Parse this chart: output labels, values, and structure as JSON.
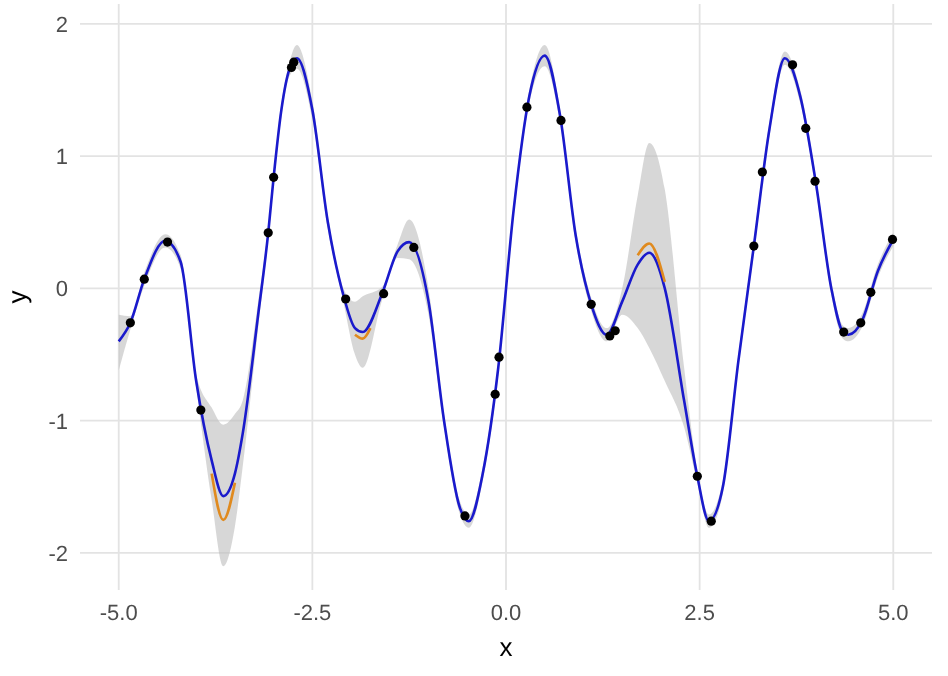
{
  "chart_data": {
    "type": "line",
    "xlabel": "x",
    "ylabel": "y",
    "xlim": [
      -5.5,
      5.5
    ],
    "ylim": [
      -2.28,
      2.15
    ],
    "xticks": [
      {
        "value": -5,
        "label": "-5.0"
      },
      {
        "value": -2.5,
        "label": "-2.5"
      },
      {
        "value": 0,
        "label": "0.0"
      },
      {
        "value": 2.5,
        "label": "2.5"
      },
      {
        "value": 5,
        "label": "5.0"
      }
    ],
    "yticks": [
      -2,
      -1,
      0,
      1,
      2
    ],
    "grid": true,
    "series": [
      {
        "color": "#1a1acc",
        "x": [
          -5,
          -4.85,
          -4.67,
          -4.4,
          -4.2,
          -4,
          -3.8,
          -3.65,
          -3.5,
          -3.4,
          -3.2,
          -3.07,
          -3,
          -2.9,
          -2.8,
          -2.7,
          -2.5,
          -2.3,
          -2.1,
          -1.95,
          -1.85,
          -1.6,
          -1.4,
          -1.25,
          -1,
          -0.8,
          -0.6,
          -0.48,
          -0.3,
          -0.1,
          0.1,
          0.3,
          0.5,
          0.7,
          0.9,
          1.1,
          1.3,
          1.5,
          1.7,
          1.85,
          2.05,
          2.3,
          2.47,
          2.62,
          2.8,
          3,
          3.2,
          3.4,
          3.6,
          3.8,
          4,
          4.2,
          4.35,
          4.42,
          4.6,
          4.8,
          5
        ],
        "values": [
          -0.4,
          -0.26,
          0.07,
          0.36,
          0.2,
          -0.7,
          -1.3,
          -1.57,
          -1.4,
          -1.1,
          -0.2,
          0.42,
          0.84,
          1.35,
          1.65,
          1.74,
          1.35,
          0.5,
          -0.05,
          -0.3,
          -0.33,
          -0.04,
          0.28,
          0.35,
          -0.1,
          -1,
          -1.65,
          -1.76,
          -1.4,
          -0.6,
          0.6,
          1.45,
          1.76,
          1.3,
          0.4,
          -0.12,
          -0.35,
          -0.1,
          0.18,
          0.27,
          0,
          -0.85,
          -1.42,
          -1.76,
          -1.5,
          -0.55,
          0.32,
          1.2,
          1.74,
          1.45,
          0.8,
          0,
          -0.33,
          -0.35,
          -0.24,
          0.13,
          0.37
        ],
        "lower": [
          -0.62,
          -0.31,
          0.02,
          0.31,
          0.15,
          -0.75,
          -1.6,
          -2.1,
          -1.8,
          -1.35,
          -0.3,
          0.37,
          0.79,
          1.3,
          1.6,
          1.66,
          1.28,
          0.45,
          -0.1,
          -0.5,
          -0.6,
          -0.09,
          0.23,
          0.22,
          -0.2,
          -1.05,
          -1.7,
          -1.81,
          -1.45,
          -0.65,
          0.55,
          1.4,
          1.68,
          1.25,
          0.35,
          -0.17,
          -0.4,
          -0.2,
          -0.3,
          -0.45,
          -0.7,
          -1.05,
          -1.47,
          -1.81,
          -1.55,
          -0.6,
          0.27,
          1.15,
          1.69,
          1.4,
          0.75,
          -0.05,
          -0.38,
          -0.4,
          -0.29,
          0.08,
          0.32
        ],
        "upper": [
          -0.2,
          -0.21,
          0.12,
          0.41,
          0.25,
          -0.65,
          -0.9,
          -1.03,
          -0.95,
          -0.85,
          -0.1,
          0.47,
          0.89,
          1.4,
          1.7,
          1.84,
          1.42,
          0.55,
          0,
          -0.1,
          -0.06,
          0.01,
          0.33,
          0.52,
          0,
          -0.95,
          -1.6,
          -1.71,
          -1.35,
          -0.55,
          0.65,
          1.5,
          1.84,
          1.35,
          0.45,
          -0.07,
          -0.3,
          0,
          0.7,
          1.1,
          0.75,
          -0.6,
          -1.37,
          -1.71,
          -1.45,
          -0.5,
          0.37,
          1.25,
          1.79,
          1.5,
          0.85,
          0.05,
          -0.28,
          -0.3,
          -0.19,
          0.18,
          0.42
        ]
      },
      {
        "type": "line",
        "color": "#e08a1e",
        "x": [
          -3.8,
          -3.65,
          -3.5,
          -2.5,
          -1.95,
          -1.85,
          -1.75,
          0,
          1.7,
          1.85,
          2.05
        ],
        "values": [
          -1.4,
          -1.75,
          -1.47,
          null,
          -0.35,
          -0.38,
          -0.3,
          null,
          0.25,
          0.34,
          0.05
        ]
      },
      {
        "type": "scatter",
        "color": "#000000",
        "marker": "circle",
        "x": [
          -4.85,
          -4.67,
          -4.37,
          -3.94,
          -3.07,
          -3,
          -2.77,
          -2.74,
          -2.07,
          -1.58,
          -1.19,
          -0.53,
          -0.14,
          -0.09,
          0.27,
          0.71,
          1.1,
          1.34,
          1.41,
          2.47,
          2.65,
          3.2,
          3.31,
          3.7,
          3.87,
          3.99,
          4.36,
          4.58,
          4.71,
          4.99
        ],
        "values": [
          -0.26,
          0.07,
          0.35,
          -0.92,
          0.42,
          0.84,
          1.67,
          1.71,
          -0.08,
          -0.04,
          0.31,
          -1.72,
          -0.8,
          -0.52,
          1.37,
          1.27,
          -0.12,
          -0.36,
          -0.32,
          -1.42,
          -1.76,
          0.32,
          0.88,
          1.69,
          1.21,
          0.81,
          -0.33,
          -0.26,
          -0.03,
          0.37
        ]
      }
    ]
  }
}
